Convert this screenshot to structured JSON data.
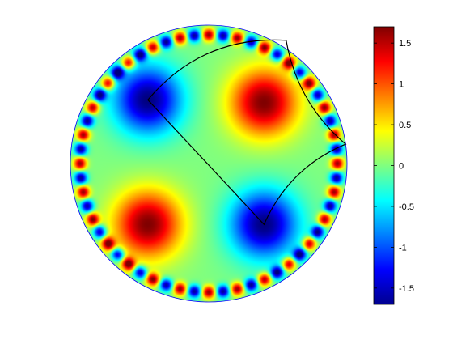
{
  "chart_data": {
    "type": "heatmap",
    "title": "",
    "xlabel": "",
    "ylabel": "",
    "domain_shape": "disk",
    "colormap": "jet",
    "clim": [
      -1.7,
      1.7
    ],
    "colorbar": {
      "placement": "right",
      "ticks": [
        1.5,
        1,
        0.5,
        0,
        -0.5,
        -1,
        -1.5
      ],
      "tick_labels": [
        "1.5",
        "1",
        "0.5",
        "0",
        "-0.5",
        "-1",
        "-1.5"
      ]
    },
    "extrema": [
      {
        "x": -0.44,
        "y": 0.46,
        "value": -1.7
      },
      {
        "x": 0.4,
        "y": 0.44,
        "value": 1.7
      },
      {
        "x": -0.44,
        "y": -0.44,
        "value": 1.7
      },
      {
        "x": 0.4,
        "y": -0.44,
        "value": -1.7
      }
    ],
    "boundary_blobs": {
      "count": 56,
      "amplitude": 1.6
    },
    "overlay_curve": {
      "color": "#000000",
      "vertices": [
        [
          -0.44,
          0.46
        ],
        [
          0.56,
          0.89
        ],
        [
          0.99,
          0.14
        ],
        [
          0.4,
          -0.44
        ]
      ],
      "closed": true
    },
    "disk_outline_color": "#0000ff"
  }
}
